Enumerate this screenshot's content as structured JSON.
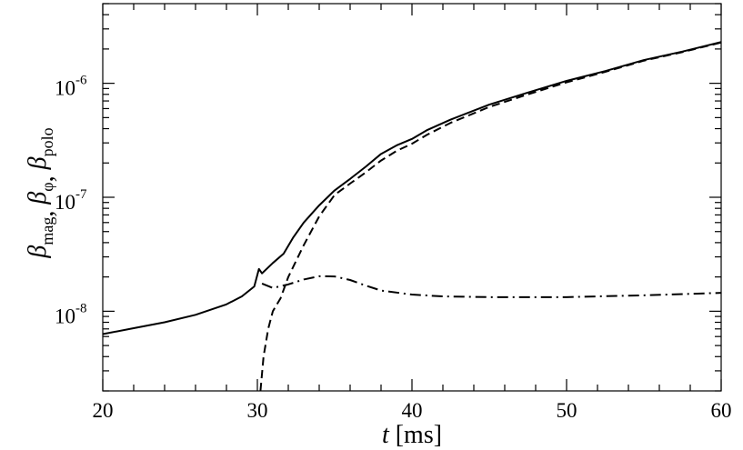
{
  "chart_data": {
    "type": "line",
    "xlabel": {
      "italic": "t",
      "rest": " [ms]"
    },
    "ylabel": {
      "parts": [
        {
          "sym": "β",
          "sub": "mag"
        },
        {
          "sym": "β",
          "sub": "φ"
        },
        {
          "sym": "β",
          "sub": "polo"
        }
      ]
    },
    "xlim": [
      20,
      60
    ],
    "ylim": [
      2e-09,
      5e-06
    ],
    "yscale": "log",
    "x_ticks": [
      "20",
      "30",
      "40",
      "50",
      "60"
    ],
    "y_ticks": [
      {
        "base": "10",
        "exp": "-8",
        "value": 1e-08
      },
      {
        "base": "10",
        "exp": "-7",
        "value": 1e-07
      },
      {
        "base": "10",
        "exp": "-6",
        "value": 1e-06
      }
    ],
    "legend": "none",
    "grid": false,
    "series": [
      {
        "line_style": "solid",
        "x": [
          20,
          22,
          24,
          26,
          28,
          29,
          29.8,
          30.1,
          30.3,
          31,
          31.7,
          32.3,
          33,
          34,
          35,
          36,
          37,
          38,
          39,
          40,
          41,
          42.5,
          45,
          47.5,
          50,
          52.5,
          55,
          57.5,
          60
        ],
        "y": [
          6.3e-09,
          7.1e-09,
          8e-09,
          9.3e-09,
          1.15e-08,
          1.35e-08,
          1.65e-08,
          2.35e-08,
          2.15e-08,
          2.65e-08,
          3.2e-08,
          4.4e-08,
          6e-08,
          8.5e-08,
          1.15e-07,
          1.45e-07,
          1.85e-07,
          2.4e-07,
          2.85e-07,
          3.25e-07,
          3.9e-07,
          4.8e-07,
          6.5e-07,
          8.3e-07,
          1.05e-06,
          1.28e-06,
          1.6e-06,
          1.9e-06,
          2.3e-06
        ]
      },
      {
        "line_style": "dashed",
        "x": [
          30.2,
          30.4,
          30.7,
          31,
          31.5,
          32,
          33,
          34,
          35,
          36,
          37,
          38,
          39,
          40,
          41,
          42.5,
          45,
          47.5,
          50,
          52.5,
          55,
          57.5,
          60
        ],
        "y": [
          2e-09,
          4e-09,
          7e-09,
          1e-08,
          1.3e-08,
          2e-08,
          3.8e-08,
          6.8e-08,
          1.05e-07,
          1.32e-07,
          1.65e-07,
          2.1e-07,
          2.55e-07,
          2.95e-07,
          3.55e-07,
          4.5e-07,
          6.2e-07,
          8e-07,
          1.02e-06,
          1.26e-06,
          1.58e-06,
          1.88e-06,
          2.28e-06
        ]
      },
      {
        "line_style": "dashdot",
        "x": [
          30.3,
          31,
          32,
          33,
          34,
          35,
          36,
          37,
          38,
          40,
          42,
          45,
          50,
          55,
          60
        ],
        "y": [
          1.75e-08,
          1.6e-08,
          1.72e-08,
          1.9e-08,
          2.03e-08,
          2.02e-08,
          1.88e-08,
          1.68e-08,
          1.52e-08,
          1.4e-08,
          1.35e-08,
          1.33e-08,
          1.33e-08,
          1.38e-08,
          1.45e-08
        ]
      }
    ]
  }
}
